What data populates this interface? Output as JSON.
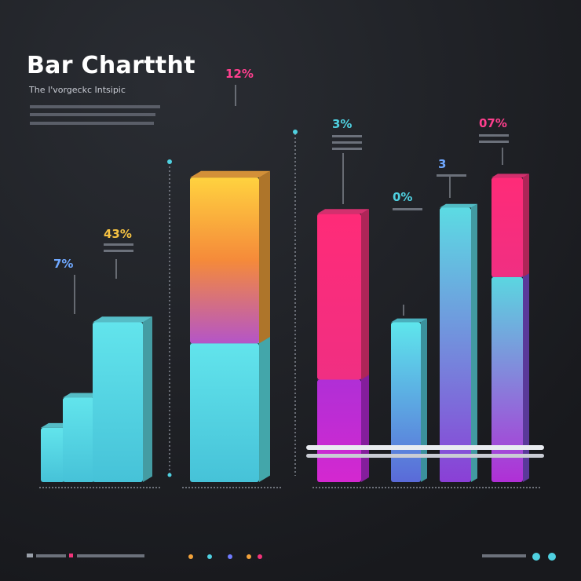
{
  "chart_data": {
    "type": "bar",
    "title": "Bar Charttht",
    "subtitle": "The I'vorgeckc Intsipic",
    "data_labels": [
      "7%",
      "43%",
      "12%",
      "3%",
      "0%",
      "3",
      "07%"
    ],
    "bars": [
      {
        "segments": [
          {
            "value": 18,
            "color": "#5fd8e3"
          }
        ]
      },
      {
        "segments": [
          {
            "value": 28,
            "color": "#5fd8e3"
          }
        ]
      },
      {
        "segments": [
          {
            "value": 53,
            "color": "#5fd8e3"
          }
        ]
      },
      {
        "segments": [
          {
            "value": 46,
            "color": "#5de6ec"
          },
          {
            "value": 55,
            "color": "#f2a23a"
          }
        ]
      },
      {
        "segments": [
          {
            "value": 34,
            "color": "#b72ad8"
          },
          {
            "value": 55,
            "color": "#f2337a"
          }
        ]
      },
      {
        "segments": [
          {
            "value": 53,
            "color": "#52c9d8"
          }
        ]
      },
      {
        "segments": [
          {
            "value": 91,
            "color": "#5bd6e0"
          }
        ]
      },
      {
        "segments": [
          {
            "value": 68,
            "color": "#7d4fd6"
          },
          {
            "value": 33,
            "color": "#f2337a"
          }
        ]
      }
    ],
    "ylim": [
      0,
      125
    ],
    "grid": false,
    "legend": "none"
  },
  "colors": {
    "background": "#1d1f24",
    "cyan": "#5fd8e3",
    "magenta": "#f2337a",
    "orange": "#f2a23a",
    "purple": "#b72ad8",
    "label_yellow": "#f5c242",
    "label_blue": "#6fa8ff",
    "label_pink": "#ff3f8e",
    "label_cyan": "#4fd0e0",
    "dots": [
      "#f2a23a",
      "#4fd0e0",
      "#6f7bff",
      "#f2a23a",
      "#f2337a",
      "#4fd0e0",
      "#4fd0e0"
    ]
  }
}
